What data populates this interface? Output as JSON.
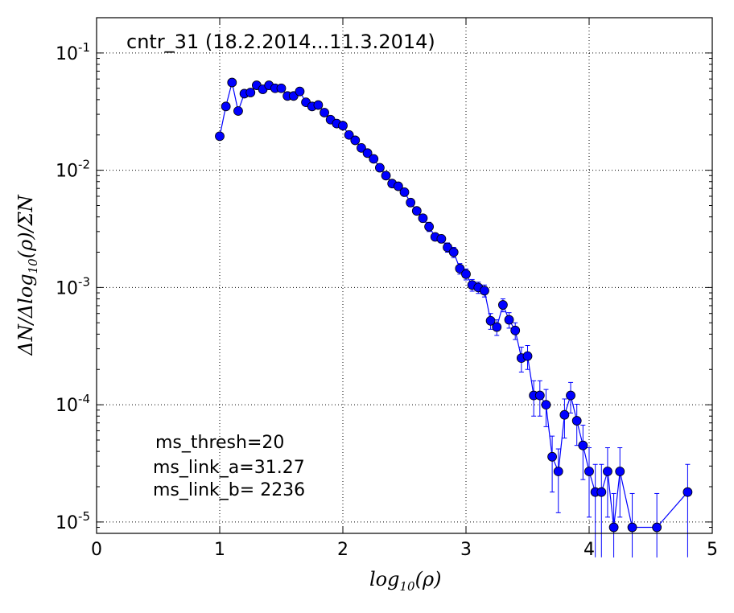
{
  "chart_data": {
    "type": "scatter",
    "title": "cntr_31 (18.2.2014...11.3.2014)",
    "xlabel": "log10(ρ)",
    "ylabel": "ΔN/Δlog10(ρ)/ΣN",
    "xlim": [
      0,
      5
    ],
    "ylim": [
      8e-06,
      0.2
    ],
    "yscale": "log",
    "grid": true,
    "x_ticks": [
      "0",
      "1",
      "2",
      "3",
      "4",
      "5"
    ],
    "y_ticks": [
      {
        "base": "10",
        "exp": "-1"
      },
      {
        "base": "10",
        "exp": "-2"
      },
      {
        "base": "10",
        "exp": "-3"
      },
      {
        "base": "10",
        "exp": "-4"
      },
      {
        "base": "10",
        "exp": "-5"
      }
    ],
    "annotations": [
      "ms_thresh=20",
      "ms_link_a=31.27",
      "ms_link_b= 2236"
    ],
    "series_color": "#0000ff",
    "series": [
      {
        "x": [
          1.0,
          1.05,
          1.1,
          1.15,
          1.2,
          1.25,
          1.3,
          1.35,
          1.4,
          1.45,
          1.5,
          1.55,
          1.6,
          1.65,
          1.7,
          1.75,
          1.8,
          1.85,
          1.9,
          1.95,
          2.0,
          2.05,
          2.1,
          2.15,
          2.2,
          2.25,
          2.3,
          2.35,
          2.4,
          2.45,
          2.5,
          2.55,
          2.6,
          2.65,
          2.7,
          2.75,
          2.8,
          2.85,
          2.9,
          2.95,
          3.0,
          3.05,
          3.1,
          3.15,
          3.2,
          3.25,
          3.3,
          3.35,
          3.4,
          3.45,
          3.5,
          3.55,
          3.6,
          3.65,
          3.7,
          3.75,
          3.8,
          3.85,
          3.9,
          3.95,
          4.0,
          4.05,
          4.1,
          4.15,
          4.2,
          4.25,
          4.35,
          4.55,
          4.8
        ],
        "y": [
          0.0195,
          0.035,
          0.056,
          0.032,
          0.045,
          0.046,
          0.053,
          0.049,
          0.053,
          0.05,
          0.05,
          0.043,
          0.043,
          0.047,
          0.038,
          0.035,
          0.036,
          0.031,
          0.027,
          0.025,
          0.024,
          0.02,
          0.018,
          0.0155,
          0.014,
          0.0125,
          0.0105,
          0.009,
          0.0077,
          0.0073,
          0.0065,
          0.0053,
          0.0045,
          0.0039,
          0.0033,
          0.0027,
          0.0026,
          0.0022,
          0.002,
          0.00145,
          0.0013,
          0.00105,
          0.001,
          0.00094,
          0.00052,
          0.00046,
          0.00071,
          0.00053,
          0.00043,
          0.00025,
          0.00026,
          0.00012,
          0.00012,
          0.0001,
          3.6e-05,
          2.7e-05,
          8.2e-05,
          0.00012,
          7.3e-05,
          4.5e-05,
          2.7e-05,
          1.8e-05,
          1.8e-05,
          2.7e-05,
          9e-06,
          2.7e-05,
          9e-06,
          9e-06,
          1.8e-05
        ],
        "yerr_low": [
          0.0012,
          0.0016,
          0.002,
          0.0015,
          0.0018,
          0.0018,
          0.002,
          0.0019,
          0.002,
          0.0019,
          0.0019,
          0.0018,
          0.0018,
          0.0018,
          0.0016,
          0.0015,
          0.0015,
          0.0014,
          0.0013,
          0.0012,
          0.0011,
          0.001,
          0.0009,
          0.0008,
          0.0008,
          0.0007,
          0.0006,
          0.0006,
          0.0005,
          0.0005,
          0.0004,
          0.0004,
          0.0003,
          0.0003,
          0.0003,
          0.0002,
          0.0002,
          0.0002,
          0.0002,
          0.00015,
          0.00014,
          0.00012,
          0.00011,
          0.00011,
          8e-05,
          7e-05,
          9e-05,
          8e-05,
          7e-05,
          6e-05,
          6e-05,
          4e-05,
          4e-05,
          3.5e-05,
          1.8e-05,
          1.5e-05,
          3e-05,
          3.5e-05,
          2.8e-05,
          2.2e-05,
          1.6e-05,
          1.3e-05,
          1.3e-05,
          1.6e-05,
          8.5e-06,
          1.6e-05,
          8.5e-06,
          8.5e-06,
          1.3e-05
        ],
        "yerr_high": [
          0.0012,
          0.0016,
          0.002,
          0.0015,
          0.0018,
          0.0018,
          0.002,
          0.0019,
          0.002,
          0.0019,
          0.0019,
          0.0018,
          0.0018,
          0.0018,
          0.0016,
          0.0015,
          0.0015,
          0.0014,
          0.0013,
          0.0012,
          0.0011,
          0.001,
          0.0009,
          0.0008,
          0.0008,
          0.0007,
          0.0006,
          0.0006,
          0.0005,
          0.0005,
          0.0004,
          0.0004,
          0.0003,
          0.0003,
          0.0003,
          0.0002,
          0.0002,
          0.0002,
          0.0002,
          0.00015,
          0.00014,
          0.00012,
          0.00011,
          0.00011,
          8e-05,
          7e-05,
          9e-05,
          8e-05,
          7e-05,
          6e-05,
          6e-05,
          4e-05,
          4e-05,
          3.5e-05,
          1.8e-05,
          1.5e-05,
          3e-05,
          3.5e-05,
          2.8e-05,
          2.2e-05,
          1.6e-05,
          1.3e-05,
          1.3e-05,
          1.6e-05,
          8.5e-06,
          1.6e-05,
          8.5e-06,
          8.5e-06,
          1.3e-05
        ]
      }
    ]
  }
}
